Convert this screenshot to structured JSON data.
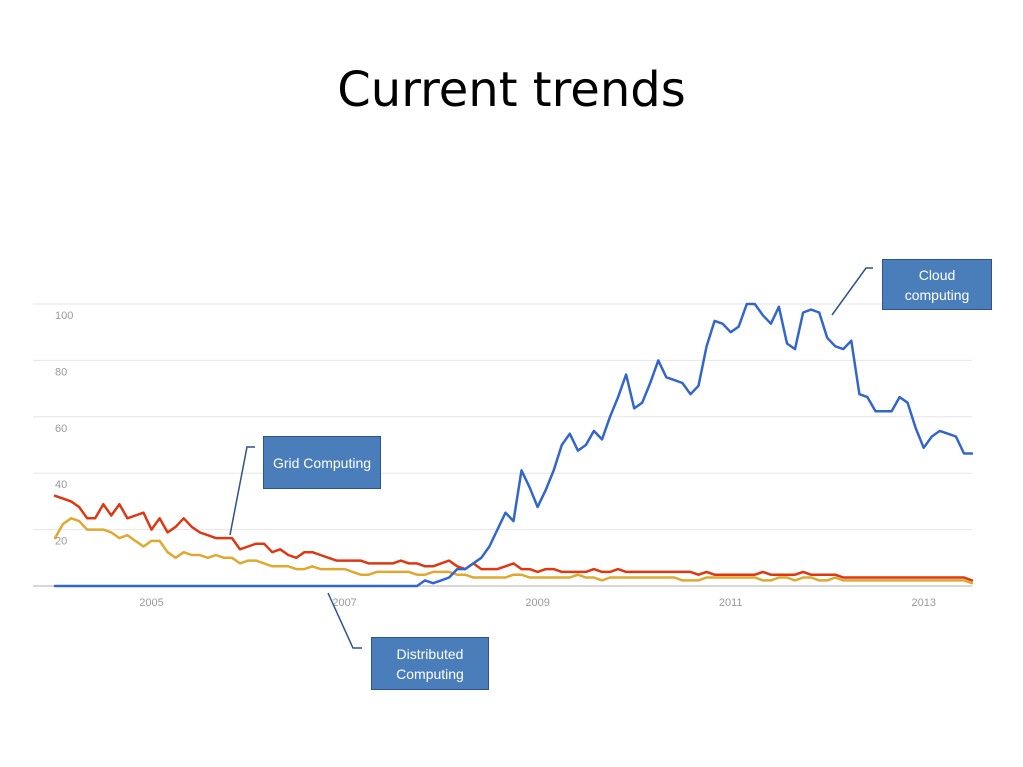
{
  "slide": {
    "title": "Current trends"
  },
  "colors": {
    "cloud": "#3366cc",
    "grid": "#dc3912",
    "distributed": "#e0a830"
  },
  "callouts": {
    "cloud": "Cloud computing",
    "grid": "Grid Computing",
    "distributed": "Distributed Computing"
  },
  "chart_data": {
    "type": "line",
    "title": "",
    "xlabel": "",
    "ylabel": "",
    "x_start": 2004.0,
    "x_step": 0.0833,
    "xlim": [
      2004.0,
      2013.5
    ],
    "ylim": [
      0,
      100
    ],
    "x_ticks": [
      "2005",
      "2007",
      "2009",
      "2011",
      "2013"
    ],
    "y_ticks": [
      "100",
      "80",
      "60",
      "40",
      "20"
    ],
    "grid": true,
    "legend": "none",
    "series": [
      {
        "key": "grid",
        "values": [
          32,
          31,
          30,
          28,
          24,
          24,
          29,
          25,
          29,
          24,
          25,
          26,
          20,
          24,
          19,
          21,
          24,
          21,
          19,
          18,
          17,
          17,
          17,
          13,
          14,
          15,
          15,
          12,
          13,
          11,
          10,
          12,
          12,
          11,
          10,
          9,
          9,
          9,
          9,
          8,
          8,
          8,
          8,
          9,
          8,
          8,
          7,
          7,
          8,
          9,
          7,
          6,
          8,
          6,
          6,
          6,
          7,
          8,
          6,
          6,
          5,
          6,
          6,
          5,
          5,
          5,
          5,
          6,
          5,
          5,
          6,
          5,
          5,
          5,
          5,
          5,
          5,
          5,
          5,
          5,
          4,
          5,
          4,
          4,
          4,
          4,
          4,
          4,
          5,
          4,
          4,
          4,
          4,
          5,
          4,
          4,
          4,
          4,
          3,
          3,
          3,
          3,
          3,
          3,
          3,
          3,
          3,
          3,
          3,
          3,
          3,
          3,
          3,
          3,
          2
        ]
      },
      {
        "key": "distributed",
        "values": [
          17,
          22,
          24,
          23,
          20,
          20,
          20,
          19,
          17,
          18,
          16,
          14,
          16,
          16,
          12,
          10,
          12,
          11,
          11,
          10,
          11,
          10,
          10,
          8,
          9,
          9,
          8,
          7,
          7,
          7,
          6,
          6,
          7,
          6,
          6,
          6,
          6,
          5,
          4,
          4,
          5,
          5,
          5,
          5,
          5,
          4,
          4,
          5,
          5,
          5,
          4,
          4,
          3,
          3,
          3,
          3,
          3,
          4,
          4,
          3,
          3,
          3,
          3,
          3,
          3,
          4,
          3,
          3,
          2,
          3,
          3,
          3,
          3,
          3,
          3,
          3,
          3,
          3,
          2,
          2,
          2,
          3,
          3,
          3,
          3,
          3,
          3,
          3,
          2,
          2,
          3,
          3,
          2,
          3,
          3,
          2,
          2,
          3,
          2,
          2,
          2,
          2,
          2,
          2,
          2,
          2,
          2,
          2,
          2,
          2,
          2,
          2,
          2,
          2,
          1
        ]
      },
      {
        "key": "cloud",
        "values": [
          0,
          0,
          0,
          0,
          0,
          0,
          0,
          0,
          0,
          0,
          0,
          0,
          0,
          0,
          0,
          0,
          0,
          0,
          0,
          0,
          0,
          0,
          0,
          0,
          0,
          0,
          0,
          0,
          0,
          0,
          0,
          0,
          0,
          0,
          0,
          0,
          0,
          0,
          0,
          0,
          0,
          0,
          0,
          0,
          0,
          0,
          2,
          1,
          2,
          3,
          6,
          6,
          8,
          10,
          14,
          20,
          26,
          23,
          41,
          35,
          28,
          34,
          41,
          50,
          54,
          48,
          50,
          55,
          52,
          60,
          67,
          75,
          63,
          65,
          72,
          80,
          74,
          73,
          72,
          68,
          71,
          85,
          94,
          93,
          90,
          92,
          100,
          100,
          96,
          93,
          99,
          86,
          84,
          97,
          98,
          97,
          88,
          85,
          84,
          87,
          68,
          67,
          62,
          62,
          62,
          67,
          65,
          56,
          49,
          53,
          55,
          54,
          53,
          47,
          47
        ]
      }
    ]
  }
}
